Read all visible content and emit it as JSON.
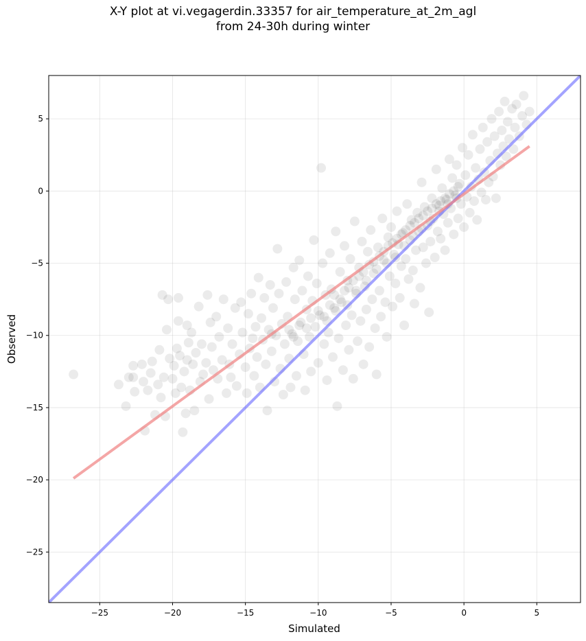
{
  "chart_data": {
    "type": "scatter",
    "title_line1": "X-Y plot at vi.vegagerdin.33357 for air_temperature_at_2m_agl",
    "title_line2": "from 24-30h during winter",
    "xlabel": "Simulated",
    "ylabel": "Observed",
    "xlim": [
      -28.5,
      8.0
    ],
    "ylim": [
      -28.5,
      8.0
    ],
    "xticks": [
      -25,
      -20,
      -15,
      -10,
      -5,
      0,
      5
    ],
    "yticks": [
      -25,
      -20,
      -15,
      -10,
      -5,
      0,
      5
    ],
    "xtick_labels": [
      "−25",
      "−20",
      "−15",
      "−10",
      "−5",
      "0",
      "5"
    ],
    "ytick_labels": [
      "−25",
      "−20",
      "−15",
      "−10",
      "−5",
      "0",
      "5"
    ],
    "grid": true,
    "point_color": "#000000",
    "point_alpha": 0.08,
    "regression_line": {
      "color": "#f08080",
      "x": [
        -26.8,
        4.5
      ],
      "y": [
        -19.9,
        3.1
      ]
    },
    "identity_line": {
      "color": "#6666ff",
      "x": [
        -28.5,
        8.0
      ],
      "y": [
        -28.5,
        8.0
      ]
    },
    "points": [
      [
        -26.8,
        -12.7
      ],
      [
        -23.2,
        -14.9
      ],
      [
        -23.0,
        -12.9
      ],
      [
        -22.7,
        -12.9
      ],
      [
        -22.6,
        -13.9
      ],
      [
        -22.7,
        -12.1
      ],
      [
        -22.1,
        -12.0
      ],
      [
        -22.0,
        -13.2
      ],
      [
        -21.9,
        -16.6
      ],
      [
        -21.7,
        -13.8
      ],
      [
        -21.5,
        -12.6
      ],
      [
        -21.2,
        -15.5
      ],
      [
        -21.0,
        -13.4
      ],
      [
        -20.9,
        -11.0
      ],
      [
        -20.8,
        -14.3
      ],
      [
        -20.7,
        -7.2
      ],
      [
        -20.6,
        -12.9
      ],
      [
        -20.5,
        -15.6
      ],
      [
        -20.4,
        -9.6
      ],
      [
        -20.3,
        -7.5
      ],
      [
        -20.2,
        -11.6
      ],
      [
        -20.0,
        -13.0
      ],
      [
        -19.9,
        -12.1
      ],
      [
        -19.8,
        -14.0
      ],
      [
        -19.7,
        -10.9
      ],
      [
        -19.6,
        -7.4
      ],
      [
        -19.6,
        -9.0
      ],
      [
        -19.5,
        -11.4
      ],
      [
        -19.4,
        -13.6
      ],
      [
        -19.3,
        -16.7
      ],
      [
        -19.2,
        -12.5
      ],
      [
        -19.1,
        -15.4
      ],
      [
        -19.0,
        -11.7
      ],
      [
        -18.9,
        -10.5
      ],
      [
        -18.8,
        -13.8
      ],
      [
        -18.7,
        -9.8
      ],
      [
        -18.6,
        -12.0
      ],
      [
        -18.5,
        -15.2
      ],
      [
        -18.4,
        -11.2
      ],
      [
        -18.2,
        -8.0
      ],
      [
        -18.1,
        -13.2
      ],
      [
        -18.0,
        -10.6
      ],
      [
        -17.9,
        -12.7
      ],
      [
        -17.7,
        -11.9
      ],
      [
        -17.6,
        -7.2
      ],
      [
        -17.5,
        -14.4
      ],
      [
        -17.3,
        -10.8
      ],
      [
        -17.2,
        -12.4
      ],
      [
        -17.0,
        -8.7
      ],
      [
        -16.9,
        -13.0
      ],
      [
        -16.8,
        -10.1
      ],
      [
        -16.6,
        -11.7
      ],
      [
        -16.5,
        -7.5
      ],
      [
        -16.3,
        -14.0
      ],
      [
        -16.2,
        -9.5
      ],
      [
        -16.0,
        -12.9
      ],
      [
        -15.9,
        -10.6
      ],
      [
        -15.7,
        -8.1
      ],
      [
        -15.6,
        -13.5
      ],
      [
        -15.4,
        -11.3
      ],
      [
        -15.3,
        -7.7
      ],
      [
        -15.2,
        -9.8
      ],
      [
        -15.0,
        -12.2
      ],
      [
        -14.9,
        -14.0
      ],
      [
        -14.8,
        -8.5
      ],
      [
        -14.7,
        -10.9
      ],
      [
        -14.6,
        -7.1
      ],
      [
        -14.4,
        -12.8
      ],
      [
        -14.3,
        -9.4
      ],
      [
        -14.2,
        -11.5
      ],
      [
        -14.1,
        -6.0
      ],
      [
        -14.0,
        -13.6
      ],
      [
        -13.9,
        -8.8
      ],
      [
        -13.8,
        -10.3
      ],
      [
        -13.7,
        -7.4
      ],
      [
        -13.6,
        -12.0
      ],
      [
        -13.5,
        -15.2
      ],
      [
        -13.4,
        -9.6
      ],
      [
        -13.3,
        -6.5
      ],
      [
        -13.2,
        -11.1
      ],
      [
        -13.1,
        -8.1
      ],
      [
        -13.0,
        -13.2
      ],
      [
        -12.9,
        -10.0
      ],
      [
        -12.8,
        -4.0
      ],
      [
        -12.7,
        -7.1
      ],
      [
        -12.6,
        -12.3
      ],
      [
        -12.5,
        -9.2
      ],
      [
        -12.4,
        -14.1
      ],
      [
        -12.3,
        -10.6
      ],
      [
        -12.2,
        -6.3
      ],
      [
        -12.1,
        -8.7
      ],
      [
        -12.0,
        -11.6
      ],
      [
        -11.9,
        -13.6
      ],
      [
        -11.8,
        -9.9
      ],
      [
        -11.7,
        -5.3
      ],
      [
        -11.6,
        -7.5
      ],
      [
        -11.5,
        -12.8
      ],
      [
        -11.4,
        -10.4
      ],
      [
        -11.3,
        -4.8
      ],
      [
        -11.2,
        -9.1
      ],
      [
        -11.1,
        -6.9
      ],
      [
        -11.0,
        -11.3
      ],
      [
        -10.9,
        -13.8
      ],
      [
        -10.8,
        -8.2
      ],
      [
        -10.7,
        -5.9
      ],
      [
        -10.6,
        -10.1
      ],
      [
        -10.5,
        -12.5
      ],
      [
        -10.4,
        -7.6
      ],
      [
        -10.3,
        -3.4
      ],
      [
        -10.2,
        -9.4
      ],
      [
        -10.1,
        -6.4
      ],
      [
        -10.0,
        -11.9
      ],
      [
        -9.9,
        -8.6
      ],
      [
        -9.8,
        1.6
      ],
      [
        -9.7,
        -5.0
      ],
      [
        -9.6,
        -10.6
      ],
      [
        -9.5,
        -7.2
      ],
      [
        -9.4,
        -13.1
      ],
      [
        -9.3,
        -9.8
      ],
      [
        -9.2,
        -4.3
      ],
      [
        -9.1,
        -6.8
      ],
      [
        -9.0,
        -11.5
      ],
      [
        -8.9,
        -8.1
      ],
      [
        -8.8,
        -2.8
      ],
      [
        -8.7,
        -14.9
      ],
      [
        -8.6,
        -10.2
      ],
      [
        -8.5,
        -5.6
      ],
      [
        -8.4,
        -7.7
      ],
      [
        -8.3,
        -12.4
      ],
      [
        -8.2,
        -3.8
      ],
      [
        -8.1,
        -9.3
      ],
      [
        -8.0,
        -6.2
      ],
      [
        -7.9,
        -11.0
      ],
      [
        -7.8,
        -4.7
      ],
      [
        -7.7,
        -8.6
      ],
      [
        -7.6,
        -13.0
      ],
      [
        -7.5,
        -2.1
      ],
      [
        -7.4,
        -7.1
      ],
      [
        -7.3,
        -10.4
      ],
      [
        -7.2,
        -5.3
      ],
      [
        -7.1,
        -9.0
      ],
      [
        -7.0,
        -3.5
      ],
      [
        -6.9,
        -12.0
      ],
      [
        -6.8,
        -6.6
      ],
      [
        -6.7,
        -8.2
      ],
      [
        -6.6,
        -4.2
      ],
      [
        -6.5,
        -10.8
      ],
      [
        -6.4,
        -2.7
      ],
      [
        -6.3,
        -7.5
      ],
      [
        -6.2,
        -5.7
      ],
      [
        -6.1,
        -9.5
      ],
      [
        -6.0,
        -12.7
      ],
      [
        -5.9,
        -3.9
      ],
      [
        -5.8,
        -6.9
      ],
      [
        -5.7,
        -8.7
      ],
      [
        -5.6,
        -1.9
      ],
      [
        -5.5,
        -4.8
      ],
      [
        -5.4,
        -7.7
      ],
      [
        -5.3,
        -10.1
      ],
      [
        -5.2,
        -3.2
      ],
      [
        -5.1,
        -5.9
      ],
      [
        -5.0,
        -2.5
      ],
      [
        -4.9,
        -8.0
      ],
      [
        -4.8,
        -4.4
      ],
      [
        -4.7,
        -6.4
      ],
      [
        -4.6,
        -1.4
      ],
      [
        -4.5,
        -3.7
      ],
      [
        -4.4,
        -7.4
      ],
      [
        -4.3,
        -5.2
      ],
      [
        -4.2,
        -2.9
      ],
      [
        -4.1,
        -9.3
      ],
      [
        -4.0,
        -4.7
      ],
      [
        -3.9,
        -0.9
      ],
      [
        -3.8,
        -6.1
      ],
      [
        -3.7,
        -3.4
      ],
      [
        -3.6,
        -2.0
      ],
      [
        -3.5,
        -5.5
      ],
      [
        -3.4,
        -7.8
      ],
      [
        -3.3,
        -4.1
      ],
      [
        -3.2,
        -1.5
      ],
      [
        -3.1,
        -2.8
      ],
      [
        -3.0,
        -6.7
      ],
      [
        -2.9,
        0.6
      ],
      [
        -2.8,
        -3.9
      ],
      [
        -2.7,
        -1.1
      ],
      [
        -2.6,
        -5.0
      ],
      [
        -2.5,
        -2.4
      ],
      [
        -2.4,
        -8.4
      ],
      [
        -2.3,
        -3.5
      ],
      [
        -2.2,
        -0.5
      ],
      [
        -2.1,
        -1.9
      ],
      [
        -2.0,
        -4.6
      ],
      [
        -1.9,
        1.5
      ],
      [
        -1.8,
        -2.8
      ],
      [
        -1.7,
        -1.0
      ],
      [
        -1.6,
        -3.3
      ],
      [
        -1.5,
        0.2
      ],
      [
        -1.4,
        -1.6
      ],
      [
        -1.3,
        -4.1
      ],
      [
        -1.2,
        -0.6
      ],
      [
        -1.1,
        -2.2
      ],
      [
        -1.0,
        2.2
      ],
      [
        -0.9,
        -1.2
      ],
      [
        -0.8,
        0.9
      ],
      [
        -0.7,
        -3.0
      ],
      [
        -0.6,
        -0.3
      ],
      [
        -0.5,
        1.8
      ],
      [
        -0.4,
        -1.9
      ],
      [
        -0.3,
        0.5
      ],
      [
        -0.2,
        -0.9
      ],
      [
        -0.1,
        3.0
      ],
      [
        0.0,
        -2.5
      ],
      [
        0.1,
        1.1
      ],
      [
        0.2,
        -0.4
      ],
      [
        0.3,
        2.5
      ],
      [
        0.4,
        -1.5
      ],
      [
        0.5,
        0.3
      ],
      [
        0.6,
        3.9
      ],
      [
        0.7,
        -0.7
      ],
      [
        0.8,
        1.6
      ],
      [
        0.9,
        -2.0
      ],
      [
        1.0,
        0.8
      ],
      [
        1.1,
        2.9
      ],
      [
        1.2,
        -0.1
      ],
      [
        1.3,
        4.4
      ],
      [
        1.4,
        1.3
      ],
      [
        1.5,
        -0.6
      ],
      [
        1.6,
        3.4
      ],
      [
        1.7,
        0.6
      ],
      [
        1.8,
        2.1
      ],
      [
        1.9,
        5.0
      ],
      [
        2.0,
        1.0
      ],
      [
        2.1,
        3.8
      ],
      [
        2.2,
        -0.5
      ],
      [
        2.3,
        2.6
      ],
      [
        2.4,
        5.5
      ],
      [
        2.5,
        1.8
      ],
      [
        2.6,
        4.2
      ],
      [
        2.7,
        3.1
      ],
      [
        2.8,
        6.2
      ],
      [
        2.9,
        2.4
      ],
      [
        3.0,
        4.8
      ],
      [
        3.1,
        3.6
      ],
      [
        3.3,
        5.7
      ],
      [
        3.4,
        2.9
      ],
      [
        3.5,
        4.4
      ],
      [
        3.6,
        6.0
      ],
      [
        3.8,
        3.8
      ],
      [
        4.0,
        5.2
      ],
      [
        4.1,
        6.6
      ],
      [
        4.3,
        4.6
      ],
      [
        4.5,
        5.5
      ],
      [
        -23.7,
        -13.4
      ],
      [
        -21.4,
        -11.8
      ],
      [
        -19.0,
        -9.3
      ],
      [
        -17.4,
        -9.1
      ],
      [
        -16.1,
        -12.0
      ],
      [
        -14.5,
        -10.2
      ],
      [
        -13.2,
        -9.9
      ],
      [
        -12.0,
        -9.6
      ],
      [
        -11.7,
        -10.1
      ],
      [
        -11.3,
        -9.3
      ],
      [
        -10.8,
        -9.5
      ],
      [
        -10.5,
        -8.8
      ],
      [
        -10.0,
        -8.3
      ],
      [
        -9.6,
        -8.7
      ],
      [
        -9.2,
        -7.9
      ],
      [
        -8.9,
        -7.2
      ],
      [
        -8.5,
        -7.5
      ],
      [
        -8.2,
        -6.9
      ],
      [
        -7.9,
        -6.7
      ],
      [
        -7.6,
        -6.2
      ],
      [
        -7.2,
        -5.9
      ],
      [
        -6.9,
        -5.6
      ],
      [
        -6.5,
        -5.1
      ],
      [
        -6.2,
        -4.9
      ],
      [
        -5.8,
        -4.5
      ],
      [
        -5.5,
        -4.2
      ],
      [
        -5.2,
        -3.8
      ],
      [
        -4.9,
        -3.6
      ],
      [
        -4.6,
        -3.3
      ],
      [
        -4.3,
        -3.0
      ],
      [
        -4.0,
        -2.7
      ],
      [
        -3.7,
        -2.4
      ],
      [
        -3.4,
        -2.2
      ],
      [
        -3.1,
        -1.9
      ],
      [
        -2.8,
        -1.7
      ],
      [
        -2.5,
        -1.4
      ],
      [
        -2.2,
        -1.2
      ],
      [
        -1.9,
        -0.9
      ],
      [
        -1.6,
        -0.7
      ],
      [
        -1.3,
        -0.5
      ],
      [
        -1.0,
        -0.2
      ],
      [
        -0.7,
        0.0
      ],
      [
        -0.4,
        0.3
      ],
      [
        -9.4,
        -9.0
      ],
      [
        -8.8,
        -8.3
      ],
      [
        -8.0,
        -7.9
      ],
      [
        -7.4,
        -6.9
      ],
      [
        -6.7,
        -6.2
      ],
      [
        -6.0,
        -5.4
      ],
      [
        -5.3,
        -5.0
      ],
      [
        -4.7,
        -4.6
      ],
      [
        -4.1,
        -3.8
      ],
      [
        -3.5,
        -3.1
      ],
      [
        -2.9,
        -2.6
      ],
      [
        -2.3,
        -2.1
      ],
      [
        -1.7,
        -1.4
      ],
      [
        -1.1,
        -0.9
      ],
      [
        -0.5,
        -0.5
      ]
    ]
  }
}
